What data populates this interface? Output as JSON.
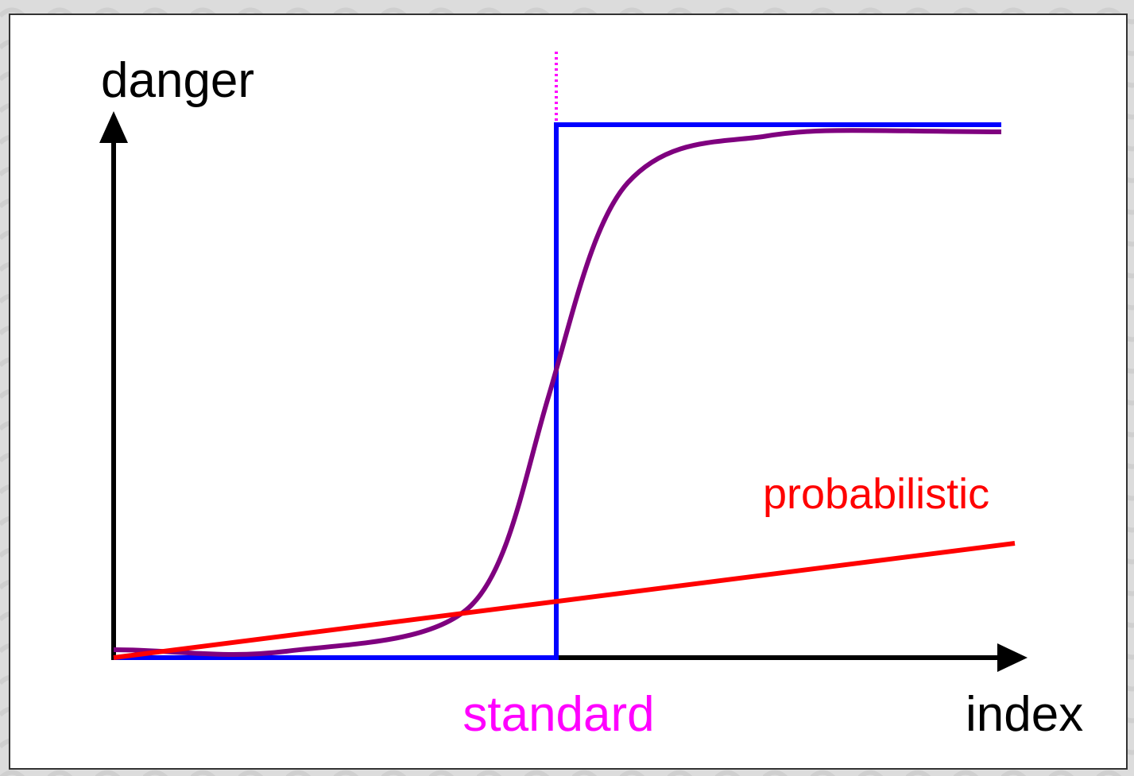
{
  "axes": {
    "y_label": "danger",
    "x_label": "index"
  },
  "labels": {
    "standard": "standard",
    "probabilistic": "probabilistic"
  }
}
